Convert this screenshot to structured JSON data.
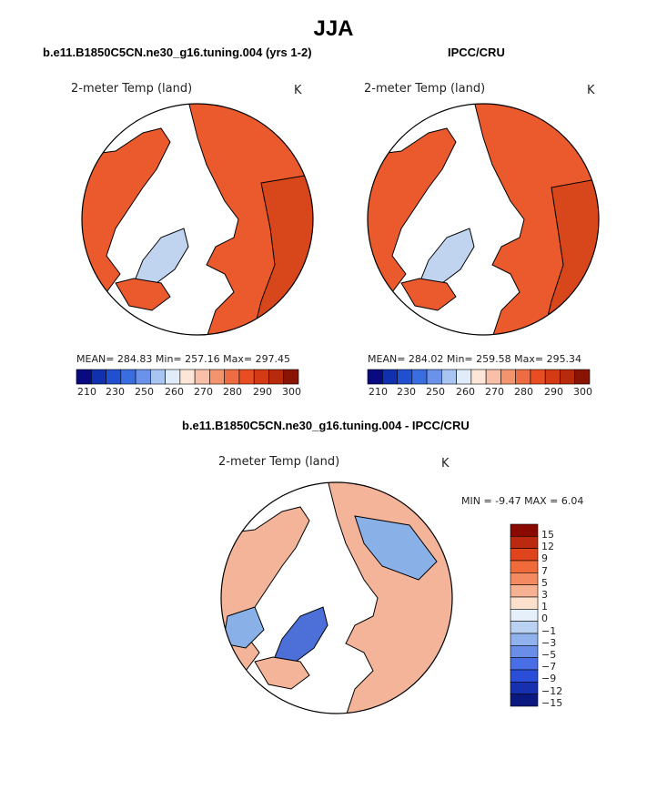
{
  "title": "JJA",
  "panels": [
    {
      "heading": "b.e11.B1850C5CN.ne30_g16.tuning.004 (yrs 1-2)",
      "variable": "2-meter Temp (land)",
      "unit": "K",
      "stats": "MEAN= 284.83  Min= 257.16  Max= 297.45",
      "colorbar_labels": [
        "210",
        "230",
        "250",
        "260",
        "270",
        "280",
        "290",
        "300"
      ]
    },
    {
      "heading": "IPCC/CRU",
      "variable": "2-meter Temp (land)",
      "unit": "K",
      "stats": "MEAN= 284.02  Min= 259.58  Max= 295.34",
      "colorbar_labels": [
        "210",
        "230",
        "250",
        "260",
        "270",
        "280",
        "290",
        "300"
      ]
    }
  ],
  "diff_panel": {
    "heading": "b.e11.B1850C5CN.ne30_g16.tuning.004 - IPCC/CRU",
    "variable": "2-meter Temp (land)",
    "unit": "K",
    "minmax": "MIN =   -9.47 MAX =    6.04",
    "colorbar_labels": [
      "15",
      "12",
      "9",
      "7",
      "5",
      "3",
      "1",
      "0",
      "−1",
      "−3",
      "−5",
      "−7",
      "−9",
      "−12",
      "−15"
    ]
  },
  "colors": {
    "abs_scale": [
      "#0a0a80",
      "#1030b0",
      "#2050d0",
      "#3a6ee0",
      "#6a92e8",
      "#a8c4f0",
      "#e0ecfa",
      "#fde6d8",
      "#f8c0a8",
      "#f3946e",
      "#ef6c42",
      "#e84e22",
      "#d43a14",
      "#b82a0c",
      "#8a1404"
    ],
    "diff_scale": [
      "#8a0a00",
      "#bb2a10",
      "#e0441c",
      "#f06a3a",
      "#f38a62",
      "#f6b092",
      "#fde0cc",
      "#e6f0fa",
      "#bad2f2",
      "#8fb2ec",
      "#6a8ee8",
      "#4a6ee6",
      "#2a4ed8",
      "#1630b0",
      "#0a1880"
    ],
    "land_warm": "#ea5a2c",
    "land_warmer": "#d8461c",
    "greenland_cold": "#c0d4f0",
    "diff_land": "#f4b49a",
    "diff_cold": "#8ab0e8",
    "diff_strong_cold": "#4c70d8"
  }
}
